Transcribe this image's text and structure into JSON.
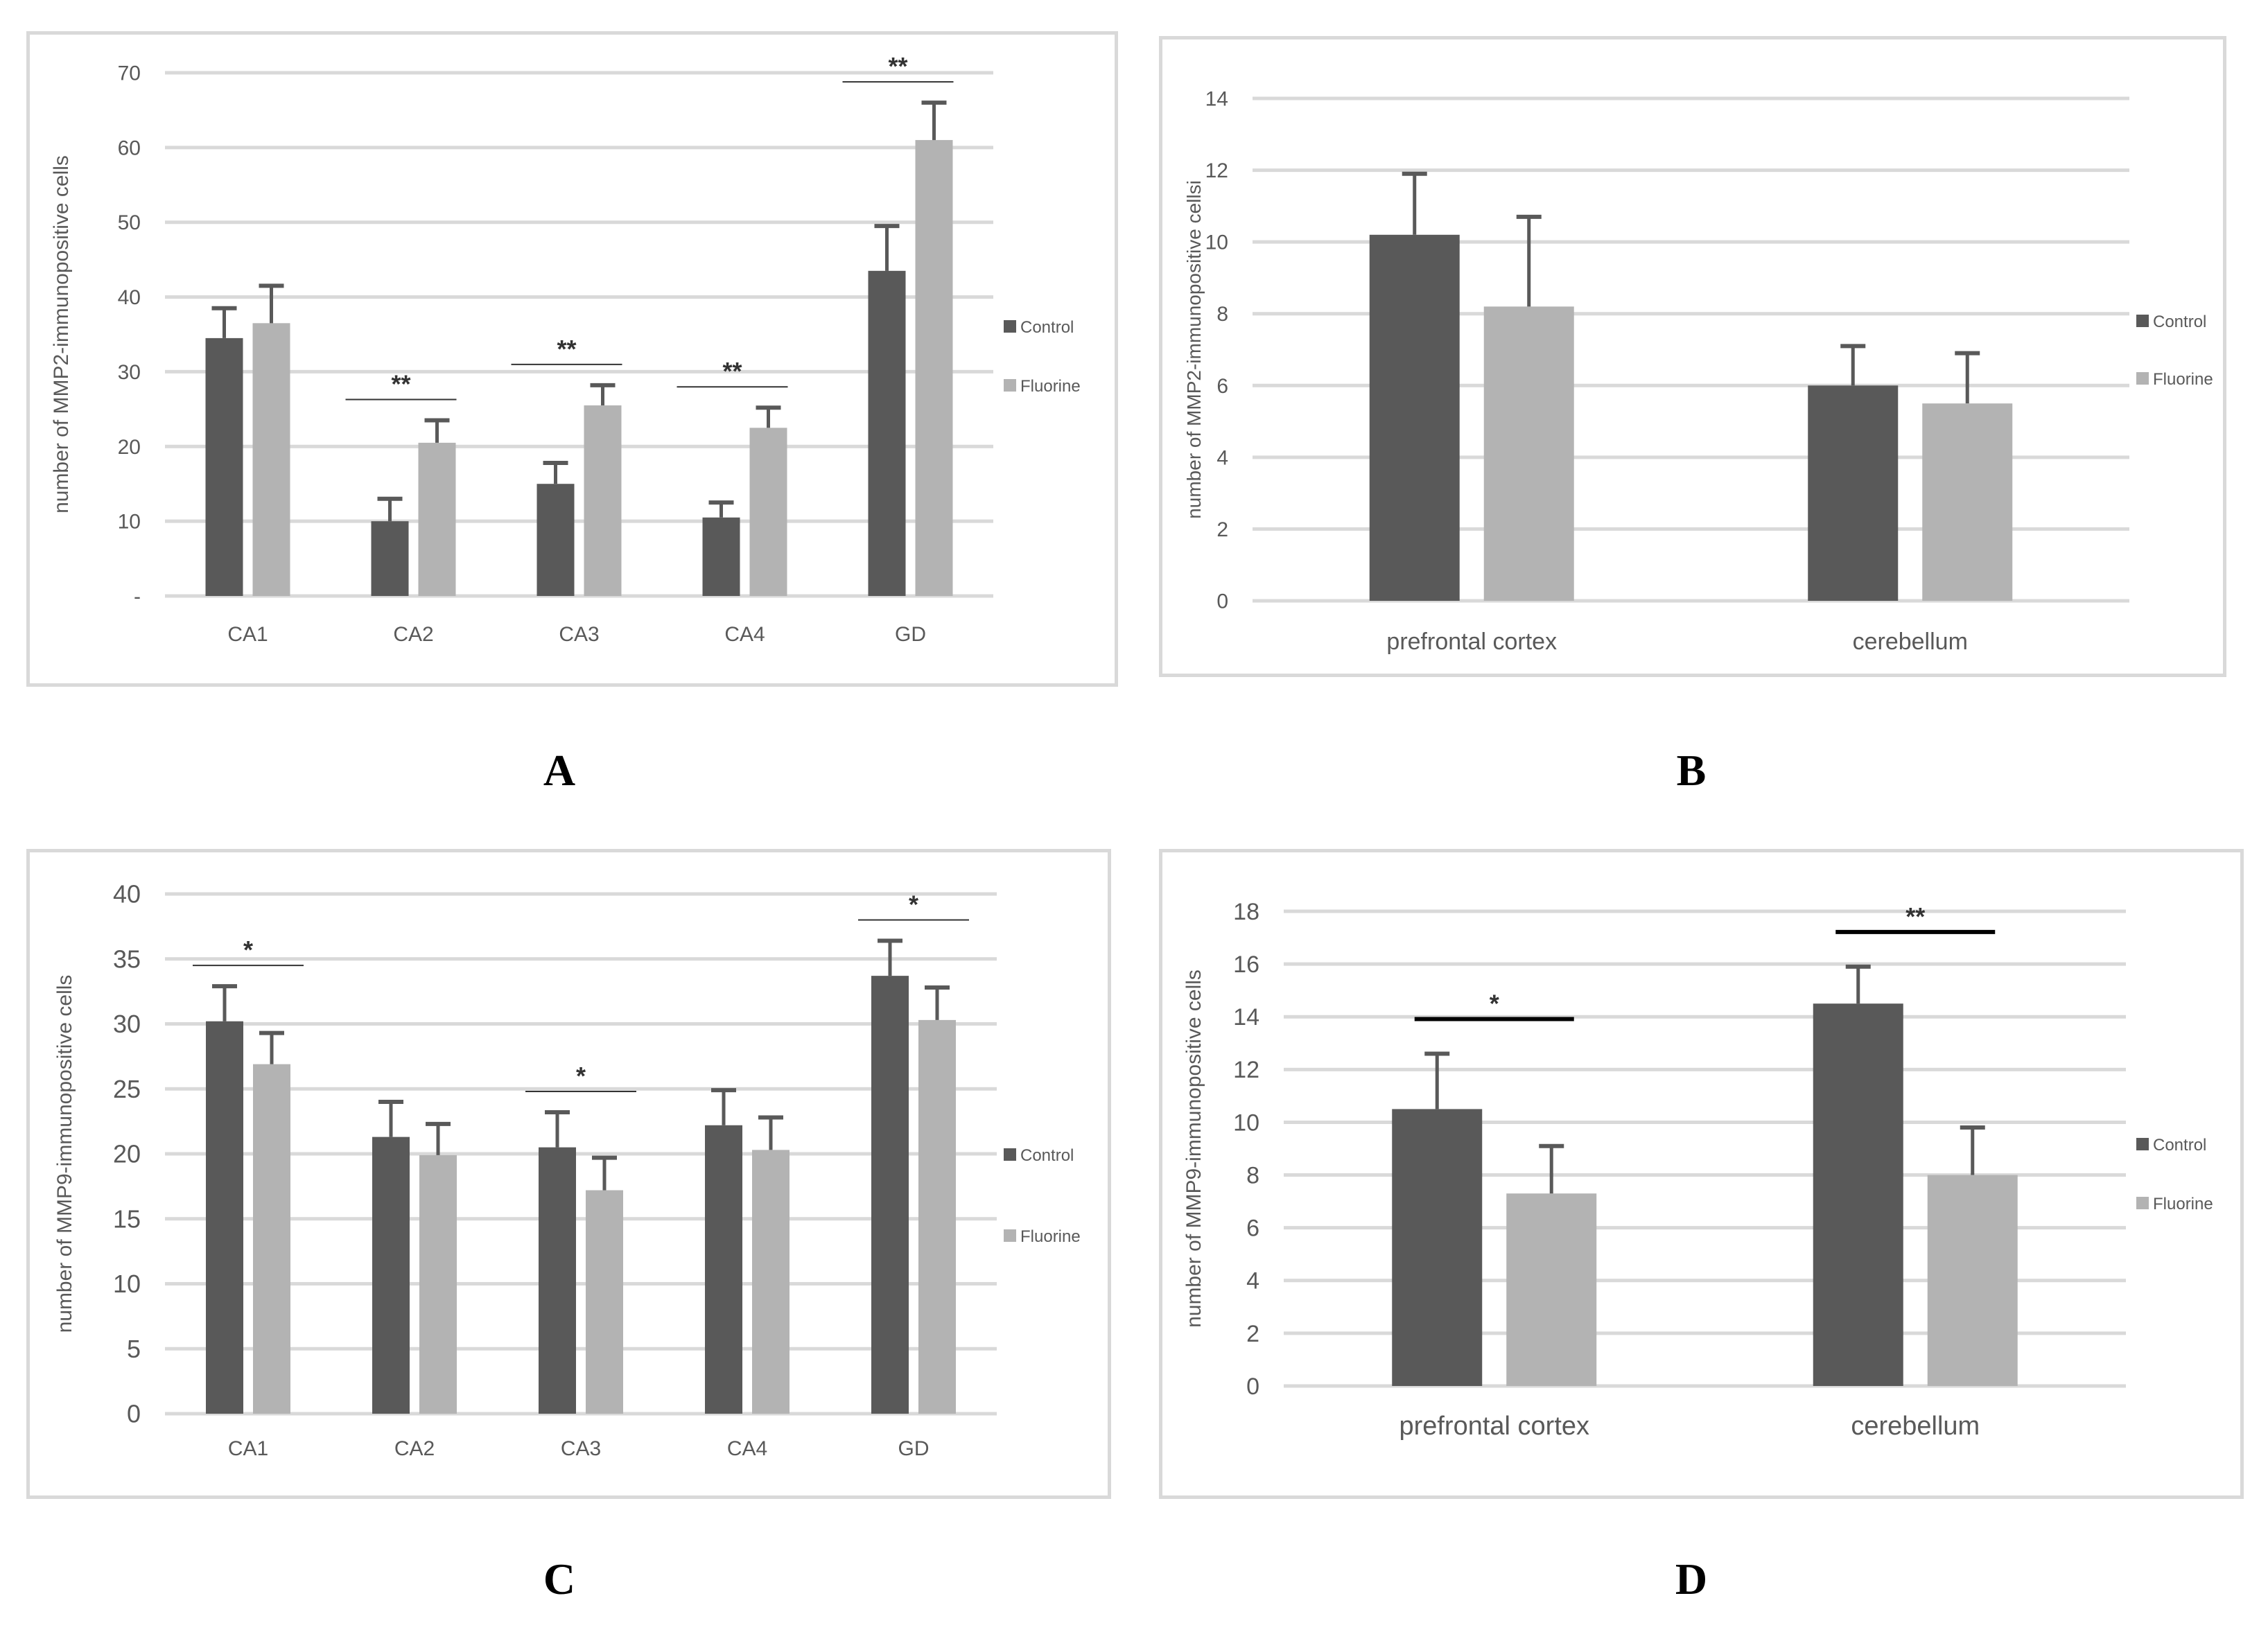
{
  "colors": {
    "control": "#595959",
    "fluorine": "#b3b3b3",
    "grid": "#d9d9d9",
    "error": "#595959",
    "text": "#595959"
  },
  "panel_labels": {
    "A": "A",
    "B": "B",
    "C": "C",
    "D": "D"
  },
  "chart_data": [
    {
      "id": "A",
      "type": "bar",
      "title": "",
      "xlabel": "",
      "ylabel": "number of MMP2-immunopositive cells",
      "categories": [
        "CA1",
        "CA2",
        "CA3",
        "CA4",
        "GD"
      ],
      "ylim": [
        0,
        70
      ],
      "yticks": [
        0,
        10,
        20,
        30,
        40,
        50,
        60,
        70
      ],
      "ytick_labels": [
        "-",
        "10",
        "20",
        "30",
        "40",
        "50",
        "60",
        "70"
      ],
      "grid": true,
      "legend_position": "right",
      "series": [
        {
          "name": "Control",
          "values": [
            34.5,
            10,
            15,
            10.5,
            43.5
          ],
          "errors": [
            4,
            3,
            2.8,
            2,
            6
          ]
        },
        {
          "name": "Fluorine",
          "values": [
            36.5,
            20.5,
            25.5,
            22.5,
            61
          ],
          "errors": [
            5,
            3,
            2.7,
            2.7,
            5
          ]
        }
      ],
      "significance": [
        {
          "category": "CA2",
          "label": "**"
        },
        {
          "category": "CA3",
          "label": "**"
        },
        {
          "category": "CA4",
          "label": "**"
        },
        {
          "category": "GD",
          "label": "**"
        }
      ]
    },
    {
      "id": "B",
      "type": "bar",
      "title": "",
      "xlabel": "",
      "ylabel": "number of MMP2-immunopositive cellsi",
      "categories": [
        "prefrontal cortex",
        "cerebellum"
      ],
      "ylim": [
        0,
        14
      ],
      "yticks": [
        0,
        2,
        4,
        6,
        8,
        10,
        12,
        14
      ],
      "ytick_labels": [
        "0",
        "2",
        "4",
        "6",
        "8",
        "10",
        "12",
        "14"
      ],
      "grid": true,
      "legend_position": "right",
      "series": [
        {
          "name": "Control",
          "values": [
            10.2,
            6
          ],
          "errors": [
            1.7,
            1.1
          ]
        },
        {
          "name": "Fluorine",
          "values": [
            8.2,
            5.5
          ],
          "errors": [
            2.5,
            1.4
          ]
        }
      ],
      "significance": []
    },
    {
      "id": "C",
      "type": "bar",
      "title": "",
      "xlabel": "",
      "ylabel": "number of MMP9-immunopositive cells",
      "categories": [
        "CA1",
        "CA2",
        "CA3",
        "CA4",
        "GD"
      ],
      "ylim": [
        0,
        40
      ],
      "yticks": [
        0,
        5,
        10,
        15,
        20,
        25,
        30,
        35,
        40
      ],
      "ytick_labels": [
        "0",
        "5",
        "10",
        "15",
        "20",
        "25",
        "30",
        "35",
        "40"
      ],
      "grid": true,
      "legend_position": "right",
      "series": [
        {
          "name": "Control",
          "values": [
            30.2,
            21.3,
            20.5,
            22.2,
            33.7
          ],
          "errors": [
            2.7,
            2.7,
            2.7,
            2.7,
            2.7
          ]
        },
        {
          "name": "Fluorine",
          "values": [
            26.9,
            19.9,
            17.2,
            20.3,
            30.3
          ],
          "errors": [
            2.4,
            2.4,
            2.5,
            2.5,
            2.5
          ]
        }
      ],
      "significance": [
        {
          "category": "CA1",
          "label": "*"
        },
        {
          "category": "CA3",
          "label": "*"
        },
        {
          "category": "GD",
          "label": "*"
        }
      ]
    },
    {
      "id": "D",
      "type": "bar",
      "title": "",
      "xlabel": "",
      "ylabel": "number of MMP9-immunopositive cells",
      "categories": [
        "prefrontal cortex",
        "cerebellum"
      ],
      "ylim": [
        0,
        18
      ],
      "yticks": [
        0,
        2,
        4,
        6,
        8,
        10,
        12,
        14,
        16,
        18
      ],
      "ytick_labels": [
        "0",
        "2",
        "4",
        "6",
        "8",
        "10",
        "12",
        "14",
        "16",
        "18"
      ],
      "grid": true,
      "legend_position": "right",
      "series": [
        {
          "name": "Control",
          "values": [
            10.5,
            14.5
          ],
          "errors": [
            2.1,
            1.4
          ]
        },
        {
          "name": "Fluorine",
          "values": [
            7.3,
            8.0
          ],
          "errors": [
            1.8,
            1.8
          ]
        }
      ],
      "significance": [
        {
          "category": "prefrontal cortex",
          "label": "*"
        },
        {
          "category": "cerebellum",
          "label": "**"
        }
      ]
    }
  ]
}
